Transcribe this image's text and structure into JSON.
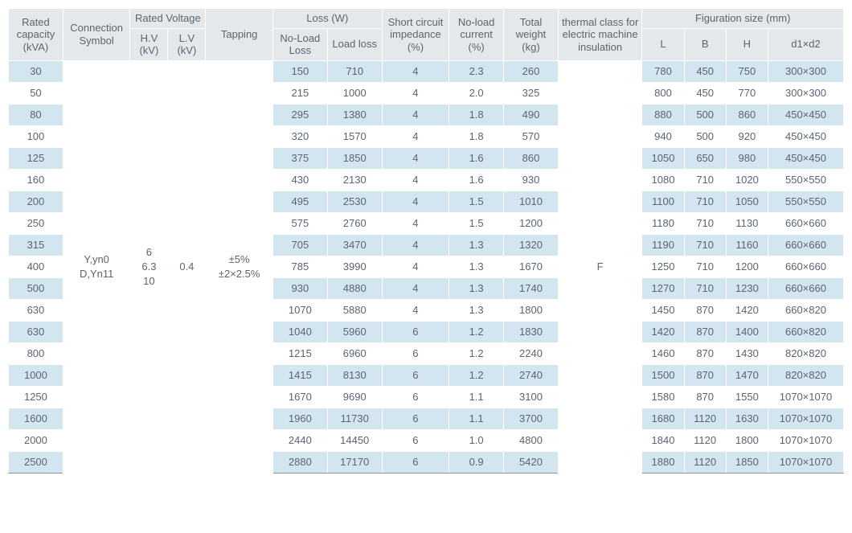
{
  "header": {
    "rated_capacity": "Rated capacity (kVA)",
    "connection_symbol": "Connection Symbol",
    "rated_voltage": "Rated Voltage",
    "hv": "H.V (kV)",
    "lv": "L.V (kV)",
    "tapping": "Tapping",
    "loss": "Loss (W)",
    "noload_loss": "No-Load Loss",
    "load_loss": "Load loss",
    "short_circuit": "Short circuit impedance (%)",
    "noload_current": "No-load current (%)",
    "total_weight": "Total weight (kg)",
    "thermal": "thermal class for electric machine insulation",
    "figuration": "Figuration size (mm)",
    "L": "L",
    "B": "B",
    "H": "H",
    "d1d2": "d1×d2"
  },
  "merged": {
    "connection": "Y,yn0\nD,Yn11",
    "hv": "6\n6.3\n10",
    "lv": "0.4",
    "tapping": "±5%\n±2×2.5%",
    "thermal": "F"
  },
  "rows": [
    {
      "cap": "30",
      "nl": "150",
      "ll": "710",
      "sc": "4",
      "nc": "2.3",
      "tw": "260",
      "L": "780",
      "B": "450",
      "H": "750",
      "d": "300×300"
    },
    {
      "cap": "50",
      "nl": "215",
      "ll": "1000",
      "sc": "4",
      "nc": "2.0",
      "tw": "325",
      "L": "800",
      "B": "450",
      "H": "770",
      "d": "300×300"
    },
    {
      "cap": "80",
      "nl": "295",
      "ll": "1380",
      "sc": "4",
      "nc": "1.8",
      "tw": "490",
      "L": "880",
      "B": "500",
      "H": "860",
      "d": "450×450"
    },
    {
      "cap": "100",
      "nl": "320",
      "ll": "1570",
      "sc": "4",
      "nc": "1.8",
      "tw": "570",
      "L": "940",
      "B": "500",
      "H": "920",
      "d": "450×450"
    },
    {
      "cap": "125",
      "nl": "375",
      "ll": "1850",
      "sc": "4",
      "nc": "1.6",
      "tw": "860",
      "L": "1050",
      "B": "650",
      "H": "980",
      "d": "450×450"
    },
    {
      "cap": "160",
      "nl": "430",
      "ll": "2130",
      "sc": "4",
      "nc": "1.6",
      "tw": "930",
      "L": "1080",
      "B": "710",
      "H": "1020",
      "d": "550×550"
    },
    {
      "cap": "200",
      "nl": "495",
      "ll": "2530",
      "sc": "4",
      "nc": "1.5",
      "tw": "1010",
      "L": "1100",
      "B": "710",
      "H": "1050",
      "d": "550×550"
    },
    {
      "cap": "250",
      "nl": "575",
      "ll": "2760",
      "sc": "4",
      "nc": "1.5",
      "tw": "1200",
      "L": "1180",
      "B": "710",
      "H": "1130",
      "d": "660×660"
    },
    {
      "cap": "315",
      "nl": "705",
      "ll": "3470",
      "sc": "4",
      "nc": "1.3",
      "tw": "1320",
      "L": "1190",
      "B": "710",
      "H": "1160",
      "d": "660×660"
    },
    {
      "cap": "400",
      "nl": "785",
      "ll": "3990",
      "sc": "4",
      "nc": "1.3",
      "tw": "1670",
      "L": "1250",
      "B": "710",
      "H": "1200",
      "d": "660×660"
    },
    {
      "cap": "500",
      "nl": "930",
      "ll": "4880",
      "sc": "4",
      "nc": "1.3",
      "tw": "1740",
      "L": "1270",
      "B": "710",
      "H": "1230",
      "d": "660×660"
    },
    {
      "cap": "630",
      "nl": "1070",
      "ll": "5880",
      "sc": "4",
      "nc": "1.3",
      "tw": "1800",
      "L": "1450",
      "B": "870",
      "H": "1420",
      "d": "660×820"
    },
    {
      "cap": "630",
      "nl": "1040",
      "ll": "5960",
      "sc": "6",
      "nc": "1.2",
      "tw": "1830",
      "L": "1420",
      "B": "870",
      "H": "1400",
      "d": "660×820"
    },
    {
      "cap": "800",
      "nl": "1215",
      "ll": "6960",
      "sc": "6",
      "nc": "1.2",
      "tw": "2240",
      "L": "1460",
      "B": "870",
      "H": "1430",
      "d": "820×820"
    },
    {
      "cap": "1000",
      "nl": "1415",
      "ll": "8130",
      "sc": "6",
      "nc": "1.2",
      "tw": "2740",
      "L": "1500",
      "B": "870",
      "H": "1470",
      "d": "820×820"
    },
    {
      "cap": "1250",
      "nl": "1670",
      "ll": "9690",
      "sc": "6",
      "nc": "1.1",
      "tw": "3100",
      "L": "1580",
      "B": "870",
      "H": "1550",
      "d": "1070×1070"
    },
    {
      "cap": "1600",
      "nl": "1960",
      "ll": "11730",
      "sc": "6",
      "nc": "1.1",
      "tw": "3700",
      "L": "1680",
      "B": "1120",
      "H": "1630",
      "d": "1070×1070"
    },
    {
      "cap": "2000",
      "nl": "2440",
      "ll": "14450",
      "sc": "6",
      "nc": "1.0",
      "tw": "4800",
      "L": "1840",
      "B": "1120",
      "H": "1800",
      "d": "1070×1070"
    },
    {
      "cap": "2500",
      "nl": "2880",
      "ll": "17170",
      "sc": "6",
      "nc": "0.9",
      "tw": "5420",
      "L": "1880",
      "B": "1120",
      "H": "1850",
      "d": "1070×1070"
    }
  ],
  "style": {
    "row_even_bg": "#d3e6ef",
    "row_odd_bg": "#ffffff",
    "header_bg": "#e5e8ea",
    "text_color": "#5a6570",
    "colwidths_pct": [
      6.5,
      8,
      4.5,
      4.5,
      8,
      6.5,
      6.5,
      8,
      6.5,
      6.5,
      10,
      5,
      5,
      5,
      9
    ]
  }
}
